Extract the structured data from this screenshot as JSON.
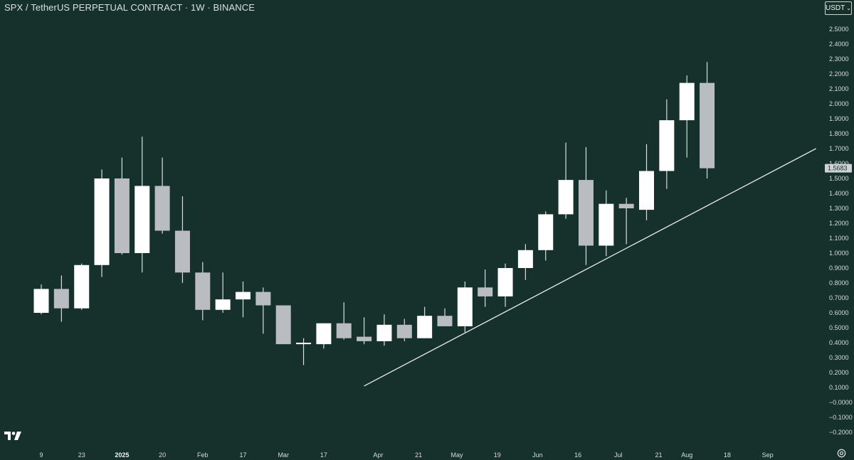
{
  "header": {
    "title": "SPX / TetherUS PERPETUAL CONTRACT · 1W · BINANCE"
  },
  "currency_button": {
    "label": "USDT"
  },
  "colors": {
    "background": "#16312b",
    "bull_candle": "#ffffff",
    "bear_candle": "#b9bcc1",
    "wick": "#d9dedc",
    "trendline": "#e8ecea",
    "axis_text": "#d6ddd9"
  },
  "icons": {
    "logo": "tradingview-logo-icon",
    "settings": "gear-icon"
  },
  "chart_data": {
    "type": "candlestick",
    "y_axis": {
      "min": -0.2,
      "max": 2.5,
      "step": 0.1,
      "tick_labels": [
        "2.5000",
        "2.4000",
        "2.3000",
        "2.2000",
        "2.1000",
        "2.0000",
        "1.9000",
        "1.8000",
        "1.7000",
        "1.6000",
        "1.5000",
        "1.4000",
        "1.3000",
        "1.2000",
        "1.1000",
        "1.0000",
        "0.9000",
        "0.8000",
        "0.7000",
        "0.6000",
        "0.5000",
        "0.4000",
        "0.3000",
        "0.2000",
        "0.1000",
        "−0.0000",
        "−0.1000",
        "−0.2000"
      ]
    },
    "x_axis": {
      "tick_labels": [
        {
          "label": "9",
          "bar": 0,
          "bold": false
        },
        {
          "label": "23",
          "bar": 2,
          "bold": false
        },
        {
          "label": "2025",
          "bar": 4,
          "bold": true
        },
        {
          "label": "20",
          "bar": 6,
          "bold": false
        },
        {
          "label": "Feb",
          "bar": 8,
          "bold": false
        },
        {
          "label": "17",
          "bar": 10,
          "bold": false
        },
        {
          "label": "Mar",
          "bar": 12,
          "bold": false
        },
        {
          "label": "17",
          "bar": 14,
          "bold": false
        },
        {
          "label": "Apr",
          "bar": 16.7,
          "bold": false
        },
        {
          "label": "21",
          "bar": 18.7,
          "bold": false
        },
        {
          "label": "May",
          "bar": 20.6,
          "bold": false
        },
        {
          "label": "19",
          "bar": 22.6,
          "bold": false
        },
        {
          "label": "Jun",
          "bar": 24.6,
          "bold": false
        },
        {
          "label": "16",
          "bar": 26.6,
          "bold": false
        },
        {
          "label": "Jul",
          "bar": 28.6,
          "bold": false
        },
        {
          "label": "21",
          "bar": 30.6,
          "bold": false
        },
        {
          "label": "Aug",
          "bar": 32,
          "bold": false
        },
        {
          "label": "18",
          "bar": 34,
          "bold": false
        },
        {
          "label": "Sep",
          "bar": 36,
          "bold": false
        }
      ]
    },
    "last_price_label": "1.5683",
    "last_price": 1.5683,
    "candles": [
      {
        "open": 0.6,
        "high": 0.79,
        "low": 0.59,
        "close": 0.76
      },
      {
        "open": 0.76,
        "high": 0.85,
        "low": 0.54,
        "close": 0.63
      },
      {
        "open": 0.63,
        "high": 0.93,
        "low": 0.62,
        "close": 0.92
      },
      {
        "open": 0.92,
        "high": 1.56,
        "low": 0.84,
        "close": 1.5
      },
      {
        "open": 1.5,
        "high": 1.64,
        "low": 0.99,
        "close": 1.0
      },
      {
        "open": 1.0,
        "high": 1.78,
        "low": 0.87,
        "close": 1.45
      },
      {
        "open": 1.45,
        "high": 1.64,
        "low": 1.13,
        "close": 1.15
      },
      {
        "open": 1.15,
        "high": 1.38,
        "low": 0.8,
        "close": 0.87
      },
      {
        "open": 0.87,
        "high": 0.94,
        "low": 0.55,
        "close": 0.62
      },
      {
        "open": 0.62,
        "high": 0.87,
        "low": 0.6,
        "close": 0.69
      },
      {
        "open": 0.69,
        "high": 0.81,
        "low": 0.57,
        "close": 0.74
      },
      {
        "open": 0.74,
        "high": 0.77,
        "low": 0.46,
        "close": 0.65
      },
      {
        "open": 0.65,
        "high": 0.65,
        "low": 0.39,
        "close": 0.39
      },
      {
        "open": 0.39,
        "high": 0.43,
        "low": 0.25,
        "close": 0.4
      },
      {
        "open": 0.39,
        "high": 0.53,
        "low": 0.36,
        "close": 0.53
      },
      {
        "open": 0.53,
        "high": 0.67,
        "low": 0.42,
        "close": 0.43
      },
      {
        "open": 0.44,
        "high": 0.57,
        "low": 0.39,
        "close": 0.41
      },
      {
        "open": 0.41,
        "high": 0.59,
        "low": 0.38,
        "close": 0.52
      },
      {
        "open": 0.52,
        "high": 0.56,
        "low": 0.41,
        "close": 0.43
      },
      {
        "open": 0.43,
        "high": 0.64,
        "low": 0.43,
        "close": 0.58
      },
      {
        "open": 0.58,
        "high": 0.63,
        "low": 0.51,
        "close": 0.51
      },
      {
        "open": 0.51,
        "high": 0.81,
        "low": 0.47,
        "close": 0.77
      },
      {
        "open": 0.77,
        "high": 0.89,
        "low": 0.64,
        "close": 0.71
      },
      {
        "open": 0.71,
        "high": 0.93,
        "low": 0.64,
        "close": 0.9
      },
      {
        "open": 0.9,
        "high": 1.06,
        "low": 0.82,
        "close": 1.02
      },
      {
        "open": 1.02,
        "high": 1.28,
        "low": 0.95,
        "close": 1.26
      },
      {
        "open": 1.26,
        "high": 1.74,
        "low": 1.23,
        "close": 1.49
      },
      {
        "open": 1.49,
        "high": 1.71,
        "low": 0.92,
        "close": 1.05
      },
      {
        "open": 1.05,
        "high": 1.42,
        "low": 0.98,
        "close": 1.33
      },
      {
        "open": 1.33,
        "high": 1.37,
        "low": 1.06,
        "close": 1.3
      },
      {
        "open": 1.29,
        "high": 1.73,
        "low": 1.22,
        "close": 1.55
      },
      {
        "open": 1.55,
        "high": 2.03,
        "low": 1.43,
        "close": 1.89
      },
      {
        "open": 1.89,
        "high": 2.19,
        "low": 1.64,
        "close": 2.14
      },
      {
        "open": 2.14,
        "high": 2.28,
        "low": 1.5,
        "close": 1.5683
      }
    ],
    "trendline": {
      "start": {
        "bar": 16.0,
        "price": 0.11
      },
      "end": {
        "bar": 38.4,
        "price": 1.7
      }
    },
    "grid": false,
    "legend": "none"
  }
}
